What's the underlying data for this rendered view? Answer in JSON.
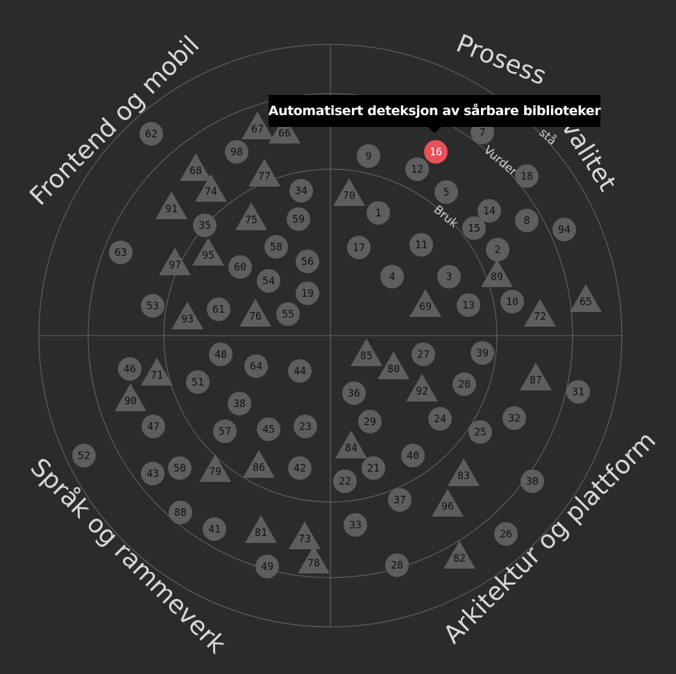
{
  "quadrants": {
    "top_left": "Frontend og mobil",
    "top_right_a": "Prosess",
    "top_right_b": "kvalitet",
    "bottom_left": "Språk og rammeverk",
    "bottom_right": "Arkitektur og plattform"
  },
  "rings": {
    "adopt": "Bruk",
    "trial": "Vurder",
    "assess": "stå"
  },
  "tooltip": {
    "text": "Automatisert deteksjon av sårbare biblioteker",
    "blip": "16"
  },
  "colors": {
    "background": "#2b2b2b",
    "blip": "#5e5e5e",
    "highlight": "#e8505b",
    "tooltip_bg": "#000000"
  },
  "blips": [
    {
      "id": "62",
      "shape": "circle"
    },
    {
      "id": "67",
      "shape": "triangle"
    },
    {
      "id": "66",
      "shape": "triangle"
    },
    {
      "id": "98",
      "shape": "circle"
    },
    {
      "id": "68",
      "shape": "triangle"
    },
    {
      "id": "74",
      "shape": "triangle"
    },
    {
      "id": "77",
      "shape": "triangle"
    },
    {
      "id": "34",
      "shape": "circle"
    },
    {
      "id": "91",
      "shape": "triangle"
    },
    {
      "id": "35",
      "shape": "circle"
    },
    {
      "id": "75",
      "shape": "triangle"
    },
    {
      "id": "59",
      "shape": "circle"
    },
    {
      "id": "63",
      "shape": "circle"
    },
    {
      "id": "95",
      "shape": "triangle"
    },
    {
      "id": "58",
      "shape": "circle"
    },
    {
      "id": "97",
      "shape": "triangle"
    },
    {
      "id": "60",
      "shape": "circle"
    },
    {
      "id": "56",
      "shape": "circle"
    },
    {
      "id": "54",
      "shape": "circle"
    },
    {
      "id": "19",
      "shape": "circle"
    },
    {
      "id": "53",
      "shape": "circle"
    },
    {
      "id": "93",
      "shape": "triangle"
    },
    {
      "id": "61",
      "shape": "circle"
    },
    {
      "id": "76",
      "shape": "triangle"
    },
    {
      "id": "55",
      "shape": "circle"
    },
    {
      "id": "9",
      "shape": "circle"
    },
    {
      "id": "16",
      "shape": "circle"
    },
    {
      "id": "7",
      "shape": "circle"
    },
    {
      "id": "12",
      "shape": "circle"
    },
    {
      "id": "18",
      "shape": "circle"
    },
    {
      "id": "70",
      "shape": "triangle"
    },
    {
      "id": "5",
      "shape": "circle"
    },
    {
      "id": "1",
      "shape": "circle"
    },
    {
      "id": "14",
      "shape": "circle"
    },
    {
      "id": "8",
      "shape": "circle"
    },
    {
      "id": "15",
      "shape": "circle"
    },
    {
      "id": "94",
      "shape": "circle"
    },
    {
      "id": "17",
      "shape": "circle"
    },
    {
      "id": "11",
      "shape": "circle"
    },
    {
      "id": "2",
      "shape": "circle"
    },
    {
      "id": "4",
      "shape": "circle"
    },
    {
      "id": "3",
      "shape": "circle"
    },
    {
      "id": "89",
      "shape": "triangle"
    },
    {
      "id": "69",
      "shape": "triangle"
    },
    {
      "id": "13",
      "shape": "circle"
    },
    {
      "id": "10",
      "shape": "circle"
    },
    {
      "id": "72",
      "shape": "triangle"
    },
    {
      "id": "65",
      "shape": "triangle"
    },
    {
      "id": "48",
      "shape": "circle"
    },
    {
      "id": "64",
      "shape": "circle"
    },
    {
      "id": "44",
      "shape": "circle"
    },
    {
      "id": "46",
      "shape": "circle"
    },
    {
      "id": "71",
      "shape": "triangle"
    },
    {
      "id": "51",
      "shape": "circle"
    },
    {
      "id": "90",
      "shape": "triangle"
    },
    {
      "id": "38",
      "shape": "circle"
    },
    {
      "id": "47",
      "shape": "circle"
    },
    {
      "id": "57",
      "shape": "circle"
    },
    {
      "id": "45",
      "shape": "circle"
    },
    {
      "id": "23",
      "shape": "circle"
    },
    {
      "id": "52",
      "shape": "circle"
    },
    {
      "id": "50",
      "shape": "circle"
    },
    {
      "id": "43",
      "shape": "circle"
    },
    {
      "id": "79",
      "shape": "triangle"
    },
    {
      "id": "86",
      "shape": "triangle"
    },
    {
      "id": "42",
      "shape": "circle"
    },
    {
      "id": "88",
      "shape": "circle"
    },
    {
      "id": "41",
      "shape": "circle"
    },
    {
      "id": "81",
      "shape": "triangle"
    },
    {
      "id": "73",
      "shape": "triangle"
    },
    {
      "id": "78",
      "shape": "triangle"
    },
    {
      "id": "49",
      "shape": "circle"
    },
    {
      "id": "85",
      "shape": "triangle"
    },
    {
      "id": "80",
      "shape": "triangle"
    },
    {
      "id": "27",
      "shape": "circle"
    },
    {
      "id": "39",
      "shape": "circle"
    },
    {
      "id": "87",
      "shape": "triangle"
    },
    {
      "id": "36",
      "shape": "circle"
    },
    {
      "id": "92",
      "shape": "triangle"
    },
    {
      "id": "20",
      "shape": "circle"
    },
    {
      "id": "31",
      "shape": "circle"
    },
    {
      "id": "29",
      "shape": "circle"
    },
    {
      "id": "24",
      "shape": "circle"
    },
    {
      "id": "32",
      "shape": "circle"
    },
    {
      "id": "25",
      "shape": "circle"
    },
    {
      "id": "84",
      "shape": "triangle"
    },
    {
      "id": "40",
      "shape": "circle"
    },
    {
      "id": "21",
      "shape": "circle"
    },
    {
      "id": "83",
      "shape": "triangle"
    },
    {
      "id": "22",
      "shape": "circle"
    },
    {
      "id": "30",
      "shape": "circle"
    },
    {
      "id": "37",
      "shape": "circle"
    },
    {
      "id": "96",
      "shape": "triangle"
    },
    {
      "id": "33",
      "shape": "circle"
    },
    {
      "id": "26",
      "shape": "circle"
    },
    {
      "id": "82",
      "shape": "triangle"
    },
    {
      "id": "28",
      "shape": "circle"
    }
  ]
}
